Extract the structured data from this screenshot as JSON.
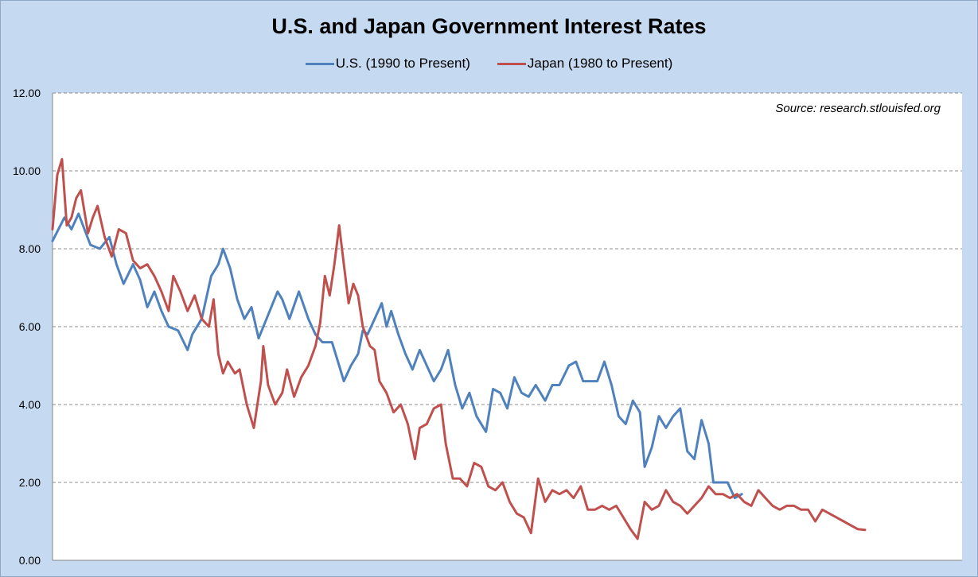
{
  "chart_data": {
    "type": "line",
    "title": "U.S. and Japan Government Interest Rates",
    "xlabel": "",
    "ylabel": "",
    "ylim": [
      0,
      12
    ],
    "y_ticks": [
      "0.00",
      "2.00",
      "4.00",
      "6.00",
      "8.00",
      "10.00",
      "12.00"
    ],
    "x_count": 385,
    "grid": "horizontal-dashed",
    "legend_position": "top-center",
    "annotation": "Source:  research.stlouisfed.org",
    "series": [
      {
        "name": "U.S. (1990 to Present)",
        "color": "#4f81bd",
        "points": [
          [
            0,
            8.2
          ],
          [
            5,
            8.8
          ],
          [
            8,
            8.5
          ],
          [
            11,
            8.9
          ],
          [
            16,
            8.1
          ],
          [
            20,
            8.0
          ],
          [
            24,
            8.3
          ],
          [
            27,
            7.6
          ],
          [
            30,
            7.1
          ],
          [
            34,
            7.6
          ],
          [
            37,
            7.2
          ],
          [
            40,
            6.5
          ],
          [
            43,
            6.9
          ],
          [
            46,
            6.4
          ],
          [
            49,
            6.0
          ],
          [
            53,
            5.9
          ],
          [
            57,
            5.4
          ],
          [
            59,
            5.8
          ],
          [
            63,
            6.2
          ],
          [
            67,
            7.3
          ],
          [
            70,
            7.6
          ],
          [
            72,
            8.0
          ],
          [
            75,
            7.5
          ],
          [
            78,
            6.7
          ],
          [
            81,
            6.2
          ],
          [
            84,
            6.5
          ],
          [
            87,
            5.7
          ],
          [
            91,
            6.3
          ],
          [
            95,
            6.9
          ],
          [
            97,
            6.7
          ],
          [
            100,
            6.2
          ],
          [
            104,
            6.9
          ],
          [
            108,
            6.2
          ],
          [
            111,
            5.8
          ],
          [
            114,
            5.6
          ],
          [
            118,
            5.6
          ],
          [
            121,
            5.0
          ],
          [
            123,
            4.6
          ],
          [
            126,
            5.0
          ],
          [
            129,
            5.3
          ],
          [
            131,
            5.9
          ],
          [
            133,
            5.8
          ],
          [
            136,
            6.2
          ],
          [
            139,
            6.6
          ],
          [
            141,
            6.0
          ],
          [
            143,
            6.4
          ],
          [
            146,
            5.8
          ],
          [
            149,
            5.3
          ],
          [
            152,
            4.9
          ],
          [
            155,
            5.4
          ],
          [
            158,
            5.0
          ],
          [
            161,
            4.6
          ],
          [
            164,
            4.9
          ],
          [
            167,
            5.4
          ],
          [
            170,
            4.5
          ],
          [
            173,
            3.9
          ],
          [
            176,
            4.3
          ],
          [
            179,
            3.7
          ],
          [
            183,
            3.3
          ],
          [
            186,
            4.4
          ],
          [
            189,
            4.3
          ],
          [
            192,
            3.9
          ],
          [
            195,
            4.7
          ],
          [
            198,
            4.3
          ],
          [
            201,
            4.2
          ],
          [
            204,
            4.5
          ],
          [
            208,
            4.1
          ],
          [
            211,
            4.5
          ],
          [
            214,
            4.5
          ],
          [
            218,
            5.0
          ],
          [
            221,
            5.1
          ],
          [
            224,
            4.6
          ],
          [
            227,
            4.6
          ],
          [
            230,
            4.6
          ],
          [
            233,
            5.1
          ],
          [
            236,
            4.5
          ],
          [
            239,
            3.7
          ],
          [
            242,
            3.5
          ],
          [
            245,
            4.1
          ],
          [
            248,
            3.8
          ],
          [
            250,
            2.4
          ],
          [
            253,
            2.9
          ],
          [
            256,
            3.7
          ],
          [
            259,
            3.4
          ],
          [
            262,
            3.7
          ],
          [
            265,
            3.9
          ],
          [
            268,
            2.8
          ],
          [
            271,
            2.6
          ],
          [
            274,
            3.6
          ],
          [
            277,
            3.0
          ],
          [
            279,
            2.0
          ],
          [
            282,
            2.0
          ],
          [
            285,
            2.0
          ],
          [
            288,
            1.6
          ],
          [
            291,
            1.7
          ]
        ]
      },
      {
        "name": "Japan (1980 to Present)",
        "color": "#c0504d",
        "points": [
          [
            0,
            8.5
          ],
          [
            2,
            9.9
          ],
          [
            4,
            10.3
          ],
          [
            6,
            8.6
          ],
          [
            8,
            8.8
          ],
          [
            10,
            9.3
          ],
          [
            12,
            9.5
          ],
          [
            15,
            8.4
          ],
          [
            17,
            8.8
          ],
          [
            19,
            9.1
          ],
          [
            22,
            8.3
          ],
          [
            25,
            7.8
          ],
          [
            28,
            8.5
          ],
          [
            31,
            8.4
          ],
          [
            34,
            7.7
          ],
          [
            37,
            7.5
          ],
          [
            40,
            7.6
          ],
          [
            43,
            7.3
          ],
          [
            46,
            6.9
          ],
          [
            49,
            6.4
          ],
          [
            51,
            7.3
          ],
          [
            54,
            6.9
          ],
          [
            57,
            6.4
          ],
          [
            60,
            6.8
          ],
          [
            63,
            6.2
          ],
          [
            66,
            6.0
          ],
          [
            68,
            6.7
          ],
          [
            70,
            5.3
          ],
          [
            72,
            4.8
          ],
          [
            74,
            5.1
          ],
          [
            77,
            4.8
          ],
          [
            79,
            4.9
          ],
          [
            82,
            4.0
          ],
          [
            85,
            3.4
          ],
          [
            88,
            4.6
          ],
          [
            89,
            5.5
          ],
          [
            91,
            4.5
          ],
          [
            94,
            4.0
          ],
          [
            97,
            4.3
          ],
          [
            99,
            4.9
          ],
          [
            102,
            4.2
          ],
          [
            105,
            4.7
          ],
          [
            108,
            5.0
          ],
          [
            111,
            5.5
          ],
          [
            113,
            6.1
          ],
          [
            115,
            7.3
          ],
          [
            117,
            6.8
          ],
          [
            119,
            7.6
          ],
          [
            121,
            8.6
          ],
          [
            123,
            7.6
          ],
          [
            125,
            6.6
          ],
          [
            127,
            7.1
          ],
          [
            129,
            6.8
          ],
          [
            131,
            6.0
          ],
          [
            134,
            5.5
          ],
          [
            136,
            5.4
          ],
          [
            138,
            4.6
          ],
          [
            141,
            4.3
          ],
          [
            144,
            3.8
          ],
          [
            147,
            4.0
          ],
          [
            150,
            3.5
          ],
          [
            153,
            2.6
          ],
          [
            155,
            3.4
          ],
          [
            158,
            3.5
          ],
          [
            161,
            3.9
          ],
          [
            164,
            4.0
          ],
          [
            166,
            3.0
          ],
          [
            169,
            2.1
          ],
          [
            172,
            2.1
          ],
          [
            175,
            1.9
          ],
          [
            178,
            2.5
          ],
          [
            181,
            2.4
          ],
          [
            184,
            1.9
          ],
          [
            187,
            1.8
          ],
          [
            190,
            2.0
          ],
          [
            193,
            1.5
          ],
          [
            196,
            1.2
          ],
          [
            199,
            1.1
          ],
          [
            202,
            0.7
          ],
          [
            205,
            2.1
          ],
          [
            208,
            1.5
          ],
          [
            211,
            1.8
          ],
          [
            214,
            1.7
          ],
          [
            217,
            1.8
          ],
          [
            220,
            1.6
          ],
          [
            223,
            1.9
          ],
          [
            226,
            1.3
          ],
          [
            229,
            1.3
          ],
          [
            232,
            1.4
          ],
          [
            235,
            1.3
          ],
          [
            238,
            1.4
          ],
          [
            241,
            1.1
          ],
          [
            244,
            0.8
          ],
          [
            247,
            0.55
          ],
          [
            250,
            1.5
          ],
          [
            253,
            1.3
          ],
          [
            256,
            1.4
          ],
          [
            259,
            1.8
          ],
          [
            262,
            1.5
          ],
          [
            265,
            1.4
          ],
          [
            268,
            1.2
          ],
          [
            271,
            1.4
          ],
          [
            274,
            1.6
          ],
          [
            277,
            1.9
          ],
          [
            280,
            1.7
          ],
          [
            283,
            1.7
          ],
          [
            286,
            1.6
          ],
          [
            289,
            1.7
          ],
          [
            292,
            1.5
          ],
          [
            295,
            1.4
          ],
          [
            298,
            1.8
          ],
          [
            301,
            1.6
          ],
          [
            304,
            1.4
          ],
          [
            307,
            1.3
          ],
          [
            310,
            1.4
          ],
          [
            313,
            1.4
          ],
          [
            316,
            1.3
          ],
          [
            319,
            1.3
          ],
          [
            322,
            1.0
          ],
          [
            325,
            1.3
          ],
          [
            328,
            1.2
          ],
          [
            331,
            1.1
          ],
          [
            334,
            1.0
          ],
          [
            337,
            0.9
          ],
          [
            340,
            0.8
          ],
          [
            343,
            0.78
          ]
        ]
      }
    ]
  }
}
